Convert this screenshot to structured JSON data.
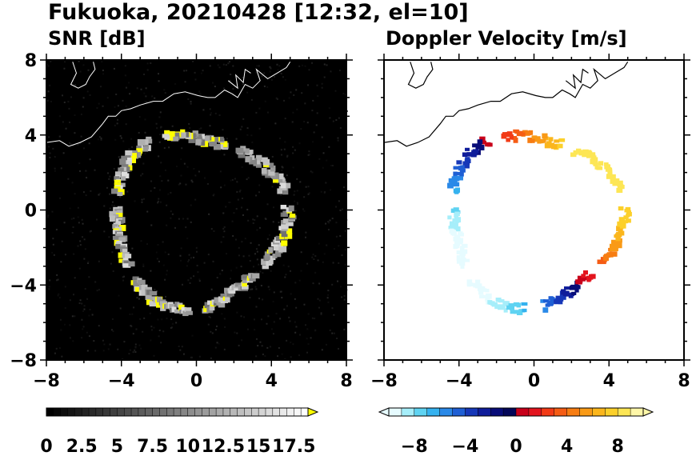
{
  "figure_title": "Fukuoka, 20210428 [12:32, el=10]",
  "chart_data": [
    {
      "type": "heatmap",
      "title": "SNR [dB]",
      "xlim": [
        -8,
        8
      ],
      "ylim": [
        -8,
        8
      ],
      "x_ticks": [
        "−8",
        "−4",
        "0",
        "4",
        "8"
      ],
      "y_ticks": [
        "8",
        "4",
        "0",
        "−4",
        "−8"
      ],
      "grid": false,
      "background_color": "#000000",
      "colorbar": {
        "labels": [
          "0",
          "2.5",
          "5",
          "7.5",
          "10",
          "12.5",
          "15",
          "17.5"
        ],
        "min": 0,
        "max": 18.5,
        "extend": "max",
        "colors": [
          "#000000",
          "#ffffff",
          "#ffff00"
        ]
      },
      "echo_ring": {
        "center_x": 0,
        "center_y": -0.5,
        "radius_approx": 4.7,
        "snr_min": 8,
        "snr_max": 19
      },
      "coastline_color": "#ffffff"
    },
    {
      "type": "heatmap",
      "title": "Doppler Velocity [m/s]",
      "xlim": [
        -8,
        8
      ],
      "ylim": [
        -8,
        8
      ],
      "x_ticks": [
        "−8",
        "−4",
        "0",
        "4",
        "8"
      ],
      "y_ticks": [],
      "grid": false,
      "background_color": "#ffffff",
      "colorbar": {
        "labels": [
          "−8",
          "−4",
          "0",
          "4",
          "8"
        ],
        "min": -10,
        "max": 10,
        "extend": "both",
        "negative_colors": [
          "#e6fbff",
          "#a6eefa",
          "#5fd3f2",
          "#35b2ef",
          "#2a89e8",
          "#1f5fd4",
          "#1637b8",
          "#0f1c9a",
          "#080c78",
          "#030658"
        ],
        "positive_colors": [
          "#c8001a",
          "#e3141e",
          "#f23a16",
          "#f55c14",
          "#f77d12",
          "#f99a16",
          "#fbb61c",
          "#fcd02a",
          "#fde655",
          "#fff7a8"
        ]
      },
      "echo_ring": {
        "center_x": 0,
        "center_y": -0.5,
        "radius_approx": 4.7,
        "velocity_range": [
          -9,
          9
        ]
      },
      "coastline_color": "#000000"
    }
  ]
}
